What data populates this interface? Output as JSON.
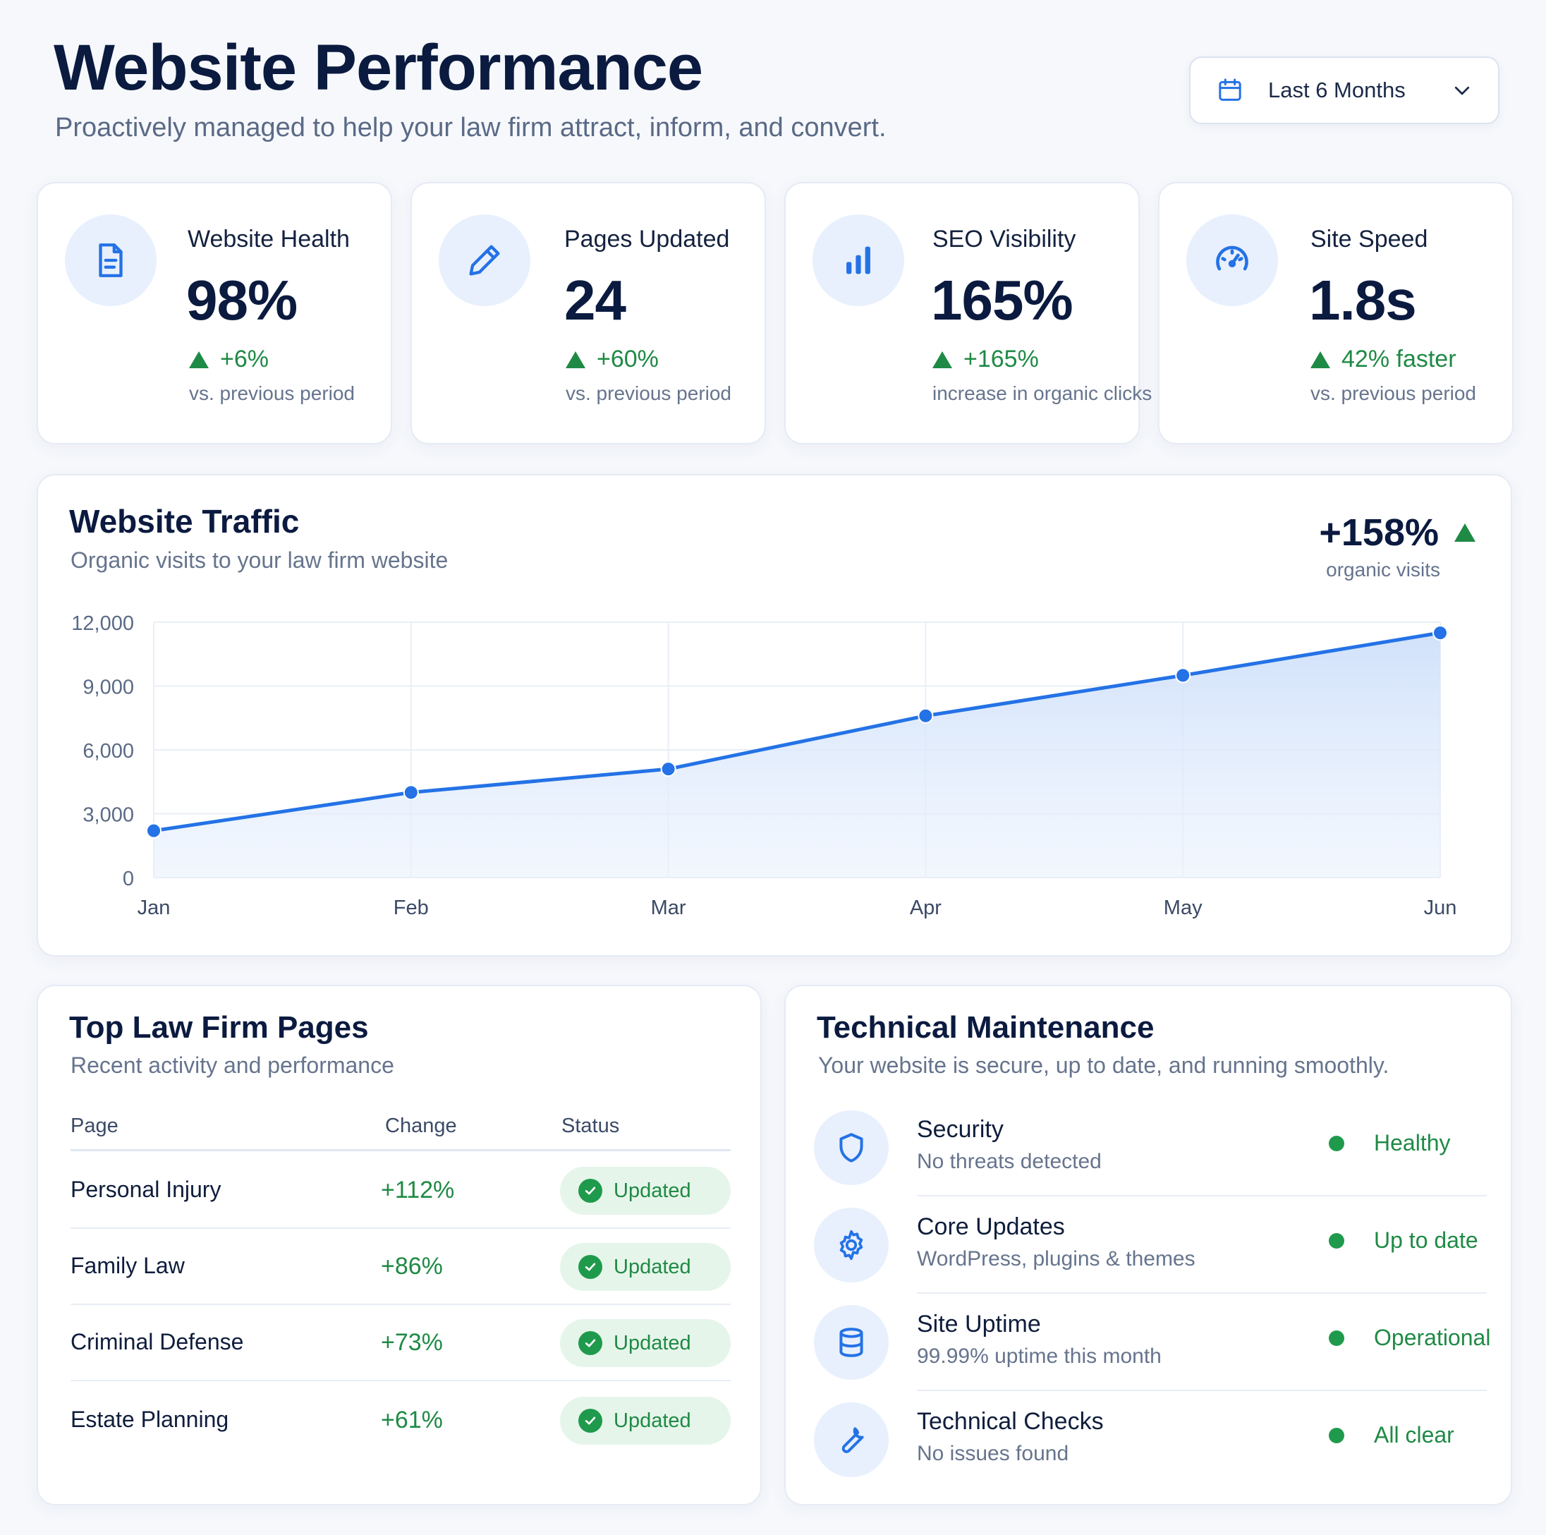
{
  "header": {
    "title": "Website Performance",
    "subtitle": "Proactively managed to help your law firm attract, inform, and convert.",
    "date_range": {
      "label": "Last 6 Months",
      "icon": "calendar-icon",
      "chevron": "chevron-down-icon"
    }
  },
  "stats": [
    {
      "icon": "document-icon",
      "label": "Website Health",
      "value": "98%",
      "delta": "+6%",
      "note": "vs. previous period"
    },
    {
      "icon": "pencil-icon",
      "label": "Pages Updated",
      "value": "24",
      "delta": "+60%",
      "note": "vs. previous period"
    },
    {
      "icon": "bar-chart-icon",
      "label": "SEO Visibility",
      "value": "165%",
      "delta": "+165%",
      "note": "increase in organic clicks"
    },
    {
      "icon": "speedometer-icon",
      "label": "Site Speed",
      "value": "1.8s",
      "delta": "42% faster",
      "note": "vs. previous period"
    }
  ],
  "traffic": {
    "title": "Website Traffic",
    "subtitle": "Organic visits to your law firm website",
    "kpi_value": "+158%",
    "kpi_label": "organic visits"
  },
  "chart_data": {
    "type": "area",
    "title": "Website Traffic",
    "categories": [
      "Jan",
      "Feb",
      "Mar",
      "Apr",
      "May",
      "Jun"
    ],
    "values": [
      2200,
      4000,
      5100,
      7600,
      9500,
      11500
    ],
    "ylim": [
      0,
      12000
    ],
    "yticks": [
      "0",
      "3,000",
      "6,000",
      "9,000",
      "12,000"
    ],
    "yticks_values": [
      0,
      3000,
      6000,
      9000,
      12000
    ],
    "grid": true,
    "line_color": "#2472e6",
    "fill_color": "#dce9fb"
  },
  "pages_table": {
    "title": "Top Law Firm Pages",
    "subtitle": "Recent activity and performance",
    "columns": [
      "Page",
      "Change",
      "Status"
    ],
    "rows": [
      {
        "page": "Personal Injury",
        "change": "+112%",
        "status": "Updated"
      },
      {
        "page": "Family Law",
        "change": "+86%",
        "status": "Updated"
      },
      {
        "page": "Criminal Defense",
        "change": "+73%",
        "status": "Updated"
      },
      {
        "page": "Estate Planning",
        "change": "+61%",
        "status": "Updated"
      }
    ]
  },
  "maintenance": {
    "title": "Technical Maintenance",
    "subtitle": "Your website is secure, up to date, and running smoothly.",
    "items": [
      {
        "icon": "shield-icon",
        "name": "Security",
        "desc": "No threats detected",
        "status": "Healthy"
      },
      {
        "icon": "gear-icon",
        "name": "Core Updates",
        "desc": "WordPress, plugins & themes",
        "status": "Up to date"
      },
      {
        "icon": "database-icon",
        "name": "Site Uptime",
        "desc": "99.99% uptime this month",
        "status": "Operational"
      },
      {
        "icon": "wrench-icon",
        "name": "Technical Checks",
        "desc": "No issues found",
        "status": "All clear"
      }
    ]
  },
  "colors": {
    "accent": "#2472e6",
    "positive": "#1f8a45",
    "title": "#0b1a3f",
    "muted": "#66748d"
  }
}
